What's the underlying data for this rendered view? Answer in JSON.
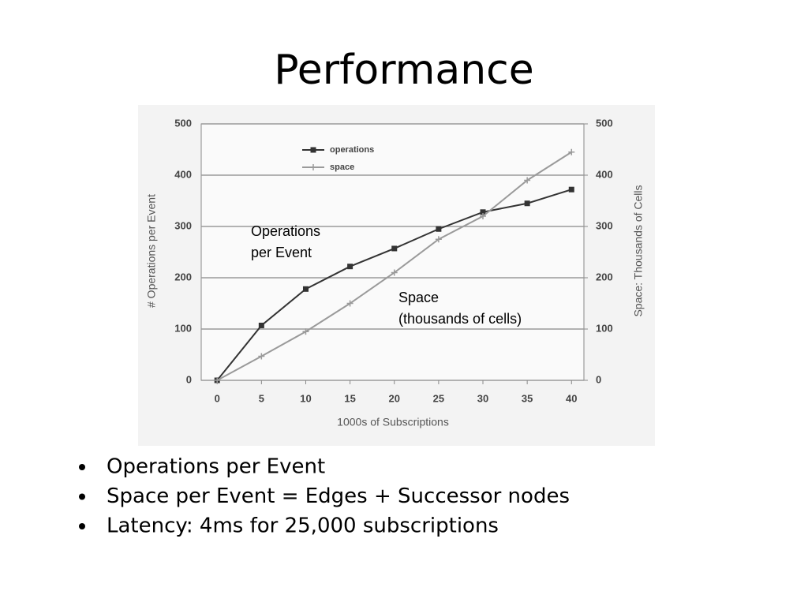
{
  "slide": {
    "title": "Performance",
    "bullets": [
      "Operations per Event",
      "Space per Event = Edges + Successor nodes",
      "Latency: 4ms for 25,000 subscriptions"
    ]
  },
  "chart_data": {
    "type": "line",
    "x": [
      0,
      5,
      10,
      15,
      20,
      25,
      30,
      35,
      40
    ],
    "series": [
      {
        "name": "operations",
        "color": "#333333",
        "marker": "square",
        "values": [
          0,
          107,
          178,
          222,
          257,
          295,
          328,
          345,
          372
        ]
      },
      {
        "name": "space",
        "color": "#9a9a9a",
        "marker": "plus",
        "axis": "y2",
        "values": [
          0,
          47,
          95,
          150,
          210,
          275,
          320,
          390,
          445
        ]
      }
    ],
    "xlim": [
      -1.8,
      41.4
    ],
    "xticks": [
      0,
      5,
      10,
      15,
      20,
      25,
      30,
      35,
      40
    ],
    "ylim": [
      0,
      500
    ],
    "yticks": [
      0,
      100,
      200,
      300,
      400,
      500
    ],
    "y2lim": [
      0,
      500
    ],
    "y2ticks": [
      0,
      100,
      200,
      300,
      400,
      500
    ],
    "xlabel": "1000s of Subscriptions",
    "ylabel": "# Operations per Event",
    "y2label": "Space: Thousands of Cells",
    "grid": true,
    "annotations": [
      [
        "Operations",
        "per Event"
      ],
      [
        "Space",
        "(thousands of cells)"
      ]
    ]
  }
}
